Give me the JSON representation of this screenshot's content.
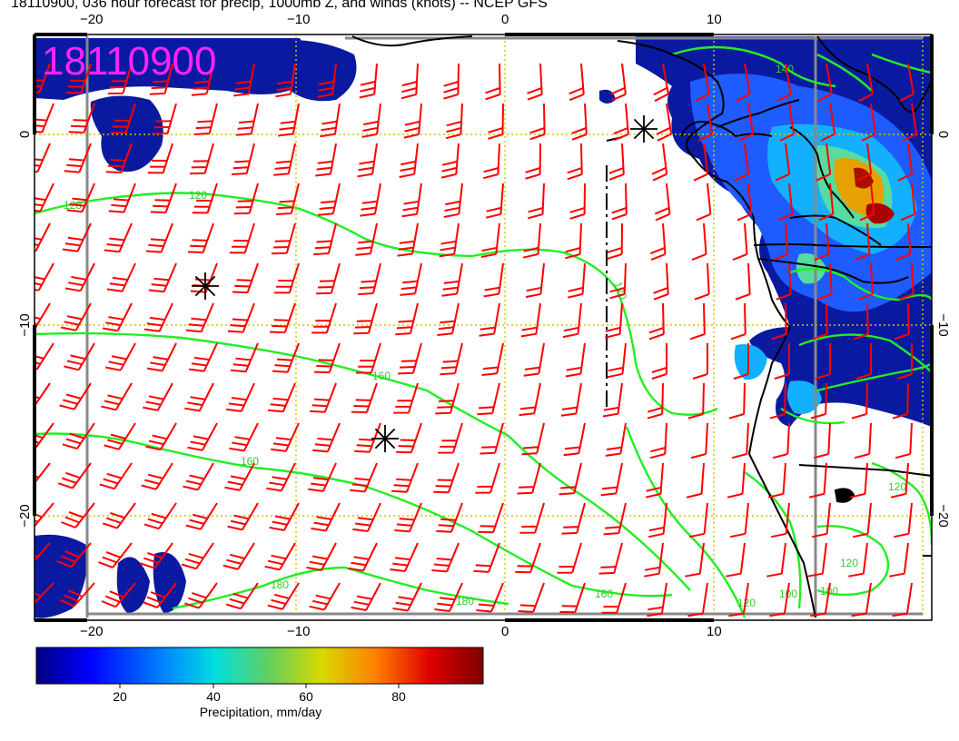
{
  "title": "18110900, 036 hour forecast for precip, 1000mb Z, and winds (knots) -- NCEP GFS",
  "stamp": "18110900",
  "axes": {
    "lon_ticks": [
      "−20",
      "−10",
      "0",
      "10"
    ],
    "lat_ticks": [
      "0",
      "−10",
      "−20"
    ]
  },
  "contours": {
    "labels": [
      "120",
      "120",
      "120",
      "160",
      "160",
      "180",
      "180",
      "160",
      "120",
      "100",
      "120",
      "100",
      "120",
      "140"
    ]
  },
  "colorbar": {
    "label": "Precipitation, mm/day",
    "ticks": [
      "20",
      "40",
      "60",
      "80"
    ],
    "colors": [
      "#00007f",
      "#0000ff",
      "#0080ff",
      "#00dfdf",
      "#60d060",
      "#d8d800",
      "#ff8000",
      "#e00000",
      "#7f0000"
    ]
  },
  "colors": {
    "wind": "#ff0000",
    "contour": "#22ee22",
    "grid": "#d6c200",
    "stamp": "#ff22ff"
  },
  "icons": {
    "low_marker": "asterisk-icon"
  }
}
